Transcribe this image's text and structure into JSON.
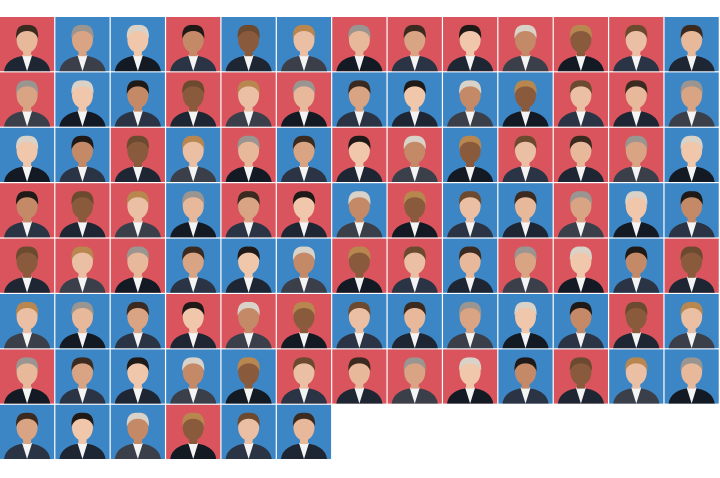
{
  "tiles": [
    [
      "#d9545c",
      "#3d86c6",
      "#3d86c6",
      "#d9545c",
      "#3d86c6",
      "#3d86c6",
      "#d9545c",
      "#d9545c",
      "#d9545c",
      "#d9545c",
      "#d9545c",
      "#d9545c",
      "#3d86c6"
    ],
    [
      "#d9545c",
      "#3d86c6",
      "#3d86c6",
      "#d9545c",
      "#d9545c",
      "#d9545c",
      "#3d86c6",
      "#3d86c6",
      "#3d86c6",
      "#3d86c6",
      "#d9545c",
      "#d9545c",
      "#3d86c6"
    ],
    [
      "#3d86c6",
      "#3d86c6",
      "#d9545c",
      "#3d86c6",
      "#d9545c",
      "#3d86c6",
      "#d9545c",
      "#d9545c",
      "#3d86c6",
      "#d9545c",
      "#d9545c",
      "#d9545c",
      "#3d86c6"
    ],
    [
      "#d9545c",
      "#d9545c",
      "#d9545c",
      "#3d86c6",
      "#d9545c",
      "#d9545c",
      "#3d86c6",
      "#d9545c",
      "#3d86c6",
      "#3d86c6",
      "#d9545c",
      "#3d86c6",
      "#3d86c6"
    ],
    [
      "#d9545c",
      "#d9545c",
      "#d9545c",
      "#3d86c6",
      "#3d86c6",
      "#3d86c6",
      "#d9545c",
      "#d9545c",
      "#3d86c6",
      "#d9545c",
      "#d9545c",
      "#3d86c6",
      "#d9545c"
    ],
    [
      "#3d86c6",
      "#3d86c6",
      "#3d86c6",
      "#d9545c",
      "#d9545c",
      "#d9545c",
      "#3d86c6",
      "#3d86c6",
      "#3d86c6",
      "#3d86c6",
      "#3d86c6",
      "#d9545c",
      "#3d86c6"
    ],
    [
      "#d9545c",
      "#3d86c6",
      "#3d86c6",
      "#3d86c6",
      "#3d86c6",
      "#d9545c",
      "#d9545c",
      "#d9545c",
      "#d9545c",
      "#3d86c6",
      "#d9545c",
      "#3d86c6",
      "#3d86c6"
    ],
    [
      "#3d86c6",
      "#3d86c6",
      "#3d86c6",
      "#d9545c",
      "#3d86c6",
      "#3d86c6"
    ]
  ]
}
